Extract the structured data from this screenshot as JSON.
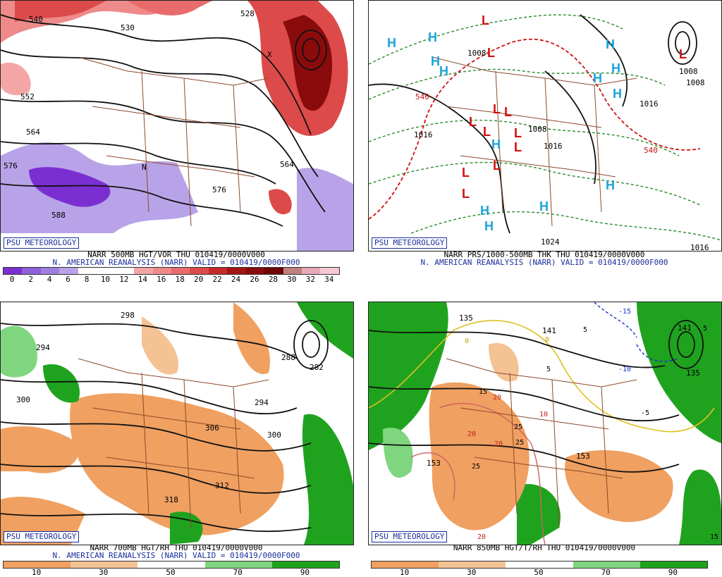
{
  "panels": [
    {
      "badge": "PSU METEOROLOGY",
      "caption1": "NARR 500MB HGT/VOR THU 010419/0000V000",
      "caption2": "N. AMERICAN REANALYSIS (NARR) VALID = 010419/0000F000",
      "colorbar_labels": [
        "0",
        "2",
        "4",
        "6",
        "8",
        "10",
        "12",
        "14",
        "16",
        "18",
        "20",
        "22",
        "24",
        "26",
        "28",
        "30",
        "32",
        "34"
      ],
      "colorbar_colors": [
        "#7b2fd0",
        "#8f5fd8",
        "#a07ee0",
        "#b8a3e8",
        "#ffffff",
        "#ffffff",
        "#ffffff",
        "#f4a6a6",
        "#ee8a8a",
        "#e86c6c",
        "#dd4a4a",
        "#c52a2a",
        "#a31414",
        "#8a0b0b",
        "#6e0505",
        "#c08080",
        "#e6a9b8",
        "#f5c8d4"
      ],
      "contour_labels": [
        "540",
        "530",
        "528",
        "552",
        "564",
        "576",
        "588",
        "564",
        "576"
      ],
      "map_labels": [
        "N",
        "X"
      ]
    },
    {
      "badge": "PSU METEOROLOGY",
      "caption1": "NARR PRS/1000-500MB THK THU 010419/0000V000",
      "caption2": "N. AMERICAN REANALYSIS (NARR) VALID = 010419/0000F000",
      "contour_labels": [
        "1008",
        "1016",
        "1008",
        "1016",
        "1008",
        "1024",
        "1016",
        "1008",
        "540",
        "540",
        "1016"
      ],
      "highs": [
        "H",
        "H",
        "H",
        "H",
        "H",
        "H",
        "H",
        "H",
        "H",
        "H",
        "H",
        "H",
        "H"
      ],
      "lows": [
        "L",
        "L",
        "L",
        "L",
        "L",
        "L",
        "L",
        "L",
        "L",
        "L",
        "L",
        "L"
      ]
    },
    {
      "badge": "PSU METEOROLOGY",
      "caption1": "NARR 700MB HGT/RH THU 010419/0000V000",
      "caption2": "N. AMERICAN REANALYSIS (NARR) VALID = 010419/0000F000",
      "colorbar_labels": [
        "10",
        "30",
        "50",
        "70",
        "90"
      ],
      "colorbar_colors": [
        "#f0a060",
        "#f5c294",
        "#ffffff",
        "#7fd67f",
        "#1fa31f"
      ],
      "contour_labels": [
        "298",
        "294",
        "300",
        "306",
        "300",
        "294",
        "282",
        "312",
        "318",
        "288"
      ]
    },
    {
      "badge": "PSU METEOROLOGY",
      "caption1": "NARR 850MB HGT/T/RH THU 010419/0000V000",
      "caption2": "",
      "colorbar_labels": [
        "10",
        "30",
        "50",
        "70",
        "90"
      ],
      "colorbar_colors": [
        "#f0a060",
        "#f5c294",
        "#ffffff",
        "#7fd67f",
        "#1fa31f"
      ],
      "contour_labels": [
        "135",
        "141",
        "153",
        "153",
        "135",
        "141"
      ],
      "temp_labels": [
        "-15",
        "-10",
        "5",
        "-5",
        "0",
        "0",
        "5",
        "15",
        "20",
        "20",
        "25",
        "25",
        "20",
        "25",
        "20",
        "10",
        "15",
        "5"
      ]
    }
  ]
}
